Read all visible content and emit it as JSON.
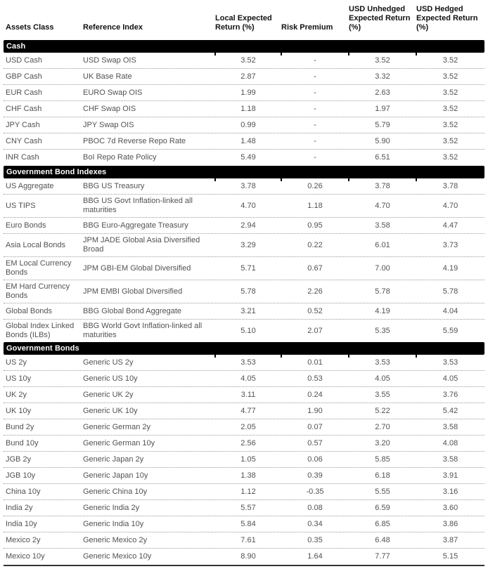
{
  "table": {
    "columns": [
      {
        "key": "asset",
        "label": "Assets Class"
      },
      {
        "key": "index",
        "label": "Reference Index"
      },
      {
        "key": "local",
        "label": "Local Expected Return (%)"
      },
      {
        "key": "premium",
        "label": "Risk Premium"
      },
      {
        "key": "unhedged",
        "label": "USD Unhedged Expected Return (%)"
      },
      {
        "key": "hedged",
        "label": "USD Hedged Expected Return (%)"
      }
    ],
    "colors": {
      "bar_bg": "#000000",
      "bar_text": "#ffffff",
      "header_text": "#111111",
      "body_text": "#515254",
      "divider": "#9b9b9b",
      "bottom_border": "#333333"
    },
    "sections": [
      {
        "label": "Cash",
        "rows": [
          {
            "asset": "USD Cash",
            "index": "USD Swap OIS",
            "local": "3.52",
            "premium": "-",
            "unhedged": "3.52",
            "hedged": "3.52"
          },
          {
            "asset": "GBP Cash",
            "index": "UK Base Rate",
            "local": "2.87",
            "premium": "-",
            "unhedged": "3.32",
            "hedged": "3.52"
          },
          {
            "asset": "EUR Cash",
            "index": "EURO Swap OIS",
            "local": "1.99",
            "premium": "-",
            "unhedged": "2.63",
            "hedged": "3.52"
          },
          {
            "asset": "CHF Cash",
            "index": "CHF Swap OIS",
            "local": "1.18",
            "premium": "-",
            "unhedged": "1.97",
            "hedged": "3.52"
          },
          {
            "asset": "JPY Cash",
            "index": "JPY Swap OIS",
            "local": "0.99",
            "premium": "-",
            "unhedged": "5.79",
            "hedged": "3.52"
          },
          {
            "asset": "CNY Cash",
            "index": "PBOC 7d Reverse Repo Rate",
            "local": "1.48",
            "premium": "-",
            "unhedged": "5.90",
            "hedged": "3.52"
          },
          {
            "asset": "INR Cash",
            "index": "BoI Repo Rate Policy",
            "local": "5.49",
            "premium": "-",
            "unhedged": "6.51",
            "hedged": "3.52"
          }
        ]
      },
      {
        "label": "Government Bond Indexes",
        "rows": [
          {
            "asset": "US Aggregate",
            "index": "BBG US Treasury",
            "local": "3.78",
            "premium": "0.26",
            "unhedged": "3.78",
            "hedged": "3.78"
          },
          {
            "asset": "US TIPS",
            "index": "BBG US Govt Inflation-linked all maturities",
            "local": "4.70",
            "premium": "1.18",
            "unhedged": "4.70",
            "hedged": "4.70"
          },
          {
            "asset": "Euro Bonds",
            "index": "BBG Euro-Aggregate Treasury",
            "local": "2.94",
            "premium": "0.95",
            "unhedged": "3.58",
            "hedged": "4.47"
          },
          {
            "asset": "Asia Local Bonds",
            "index": "JPM JADE Global Asia Diversified Broad",
            "local": "3.29",
            "premium": "0.22",
            "unhedged": "6.01",
            "hedged": "3.73"
          },
          {
            "asset": "EM Local Currency Bonds",
            "index": "JPM GBI-EM Global Diversified",
            "local": "5.71",
            "premium": "0.67",
            "unhedged": "7.00",
            "hedged": "4.19"
          },
          {
            "asset": "EM Hard Currency Bonds",
            "index": "JPM EMBI Global Diversified",
            "local": "5.78",
            "premium": "2.26",
            "unhedged": "5.78",
            "hedged": "5.78"
          },
          {
            "asset": "Global Bonds",
            "index": "BBG Global Bond Aggregate",
            "local": "3.21",
            "premium": "0.52",
            "unhedged": "4.19",
            "hedged": "4.04"
          },
          {
            "asset": "Global Index Linked Bonds (ILBs)",
            "index": "BBG World Govt Inflation-linked all maturities",
            "local": "5.10",
            "premium": "2.07",
            "unhedged": "5.35",
            "hedged": "5.59"
          }
        ]
      },
      {
        "label": "Government Bonds",
        "rows": [
          {
            "asset": "US 2y",
            "index": "Generic US 2y",
            "local": "3.53",
            "premium": "0.01",
            "unhedged": "3.53",
            "hedged": "3.53"
          },
          {
            "asset": "US 10y",
            "index": "Generic US 10y",
            "local": "4.05",
            "premium": "0.53",
            "unhedged": "4.05",
            "hedged": "4.05"
          },
          {
            "asset": "UK 2y",
            "index": "Generic UK 2y",
            "local": "3.11",
            "premium": "0.24",
            "unhedged": "3.55",
            "hedged": "3.76"
          },
          {
            "asset": "UK 10y",
            "index": "Generic UK 10y",
            "local": "4.77",
            "premium": "1.90",
            "unhedged": "5.22",
            "hedged": "5.42"
          },
          {
            "asset": "Bund 2y",
            "index": "Generic German 2y",
            "local": "2.05",
            "premium": "0.07",
            "unhedged": "2.70",
            "hedged": "3.58"
          },
          {
            "asset": "Bund 10y",
            "index": "Generic German 10y",
            "local": "2.56",
            "premium": "0.57",
            "unhedged": "3.20",
            "hedged": "4.08"
          },
          {
            "asset": "JGB 2y",
            "index": "Generic Japan 2y",
            "local": "1.05",
            "premium": "0.06",
            "unhedged": "5.85",
            "hedged": "3.58"
          },
          {
            "asset": "JGB 10y",
            "index": "Generic Japan 10y",
            "local": "1.38",
            "premium": "0.39",
            "unhedged": "6.18",
            "hedged": "3.91"
          },
          {
            "asset": "China 10y",
            "index": "Generic China 10y",
            "local": "1.12",
            "premium": "-0.35",
            "unhedged": "5.55",
            "hedged": "3.16"
          },
          {
            "asset": "India 2y",
            "index": "Generic India 2y",
            "local": "5.57",
            "premium": "0.08",
            "unhedged": "6.59",
            "hedged": "3.60"
          },
          {
            "asset": "India 10y",
            "index": "Generic India 10y",
            "local": "5.84",
            "premium": "0.34",
            "unhedged": "6.85",
            "hedged": "3.86"
          },
          {
            "asset": "Mexico 2y",
            "index": "Generic Mexico 2y",
            "local": "7.61",
            "premium": "0.35",
            "unhedged": "6.48",
            "hedged": "3.87"
          },
          {
            "asset": "Mexico 10y",
            "index": "Generic Mexico 10y",
            "local": "8.90",
            "premium": "1.64",
            "unhedged": "7.77",
            "hedged": "5.15"
          }
        ]
      }
    ]
  }
}
